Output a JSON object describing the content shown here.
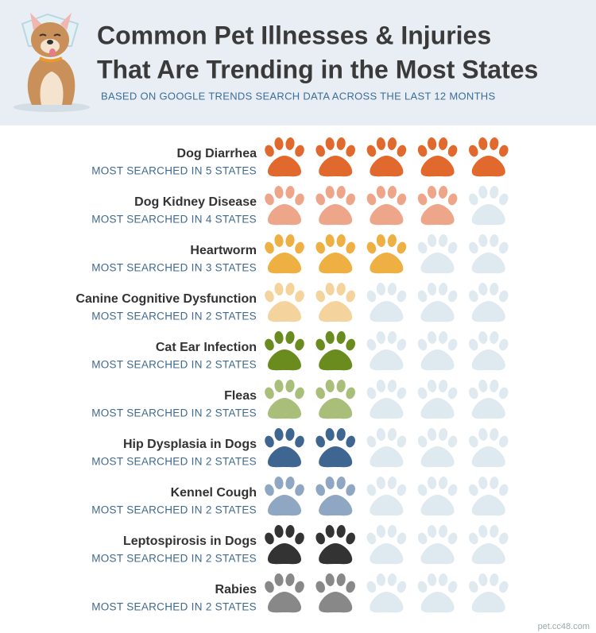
{
  "chart_data": {
    "type": "pictogram",
    "title": [
      "Common Pet Illnesses & Injuries",
      "That Are Trending in the Most States"
    ],
    "subtitle": "BASED ON GOOGLE TRENDS SEARCH DATA ACROSS THE LAST 12 MONTHS",
    "categories": [
      "Dog Diarrhea",
      "Dog Kidney Disease",
      "Heartworm",
      "Canine Cognitive Dysfunction",
      "Cat Ear Infection",
      "Fleas",
      "Hip Dysplasia in Dogs",
      "Kennel Cough",
      "Leptospirosis in Dogs",
      "Rabies"
    ],
    "values": [
      5,
      4,
      3,
      2,
      2,
      2,
      2,
      2,
      2,
      2
    ],
    "value_labels": [
      "MOST SEARCHED IN 5 STATES",
      "MOST SEARCHED IN 4 STATES",
      "MOST SEARCHED IN 3 STATES",
      "MOST SEARCHED IN 2 STATES",
      "MOST SEARCHED IN 2 STATES",
      "MOST SEARCHED IN 2 STATES",
      "MOST SEARCHED IN 2 STATES",
      "MOST SEARCHED IN 2 STATES",
      "MOST SEARCHED IN 2 STATES",
      "MOST SEARCHED IN 2 STATES"
    ],
    "colors": [
      "#e2692d",
      "#eea68a",
      "#efb043",
      "#f4d49c",
      "#6a8c1e",
      "#a9bf79",
      "#3f6690",
      "#8fa7c2",
      "#333333",
      "#888888"
    ],
    "empty_color": "#dfe9f0",
    "xlim": [
      0,
      5
    ],
    "watermark": "pet.cc48.com"
  }
}
